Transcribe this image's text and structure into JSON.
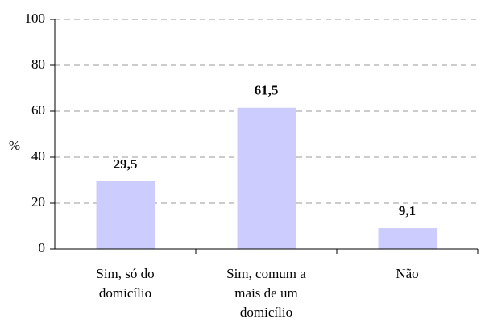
{
  "chart_data": {
    "type": "bar",
    "categories": [
      "Sim, só do domicílio",
      "Sim, comum a mais de um domicílio",
      "Não"
    ],
    "values": [
      29.5,
      61.5,
      9.1
    ],
    "value_labels": [
      "29,5",
      "61,5",
      "9,1"
    ],
    "color": "#ccccff",
    "ylabel": "%",
    "ylim": [
      0,
      100
    ],
    "yticks": [
      0,
      20,
      40,
      60,
      80,
      100
    ],
    "grid": true
  }
}
